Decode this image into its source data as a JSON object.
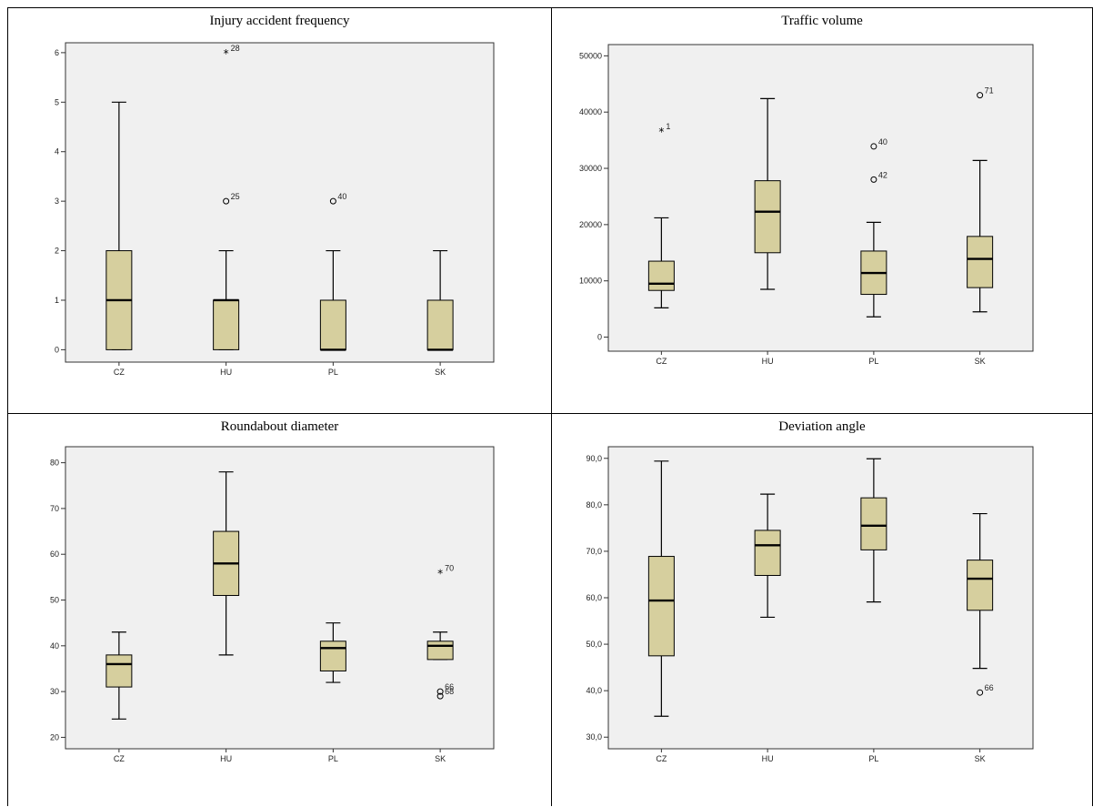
{
  "colors": {
    "box_fill": "#d6cf9e",
    "plot_bg": "#f0f0f0"
  },
  "chart_data": [
    {
      "type": "boxplot",
      "title": "Injury accident frequency",
      "categories": [
        "CZ",
        "HU",
        "PL",
        "SK"
      ],
      "ylim": [
        -0.25,
        6.2
      ],
      "yticks": [
        0,
        1,
        2,
        3,
        4,
        5,
        6
      ],
      "ytick_labels": [
        "0",
        "1",
        "2",
        "3",
        "4",
        "5",
        "6"
      ],
      "boxes": [
        {
          "min": 0,
          "q1": 0,
          "median": 1,
          "q3": 2,
          "max": 5
        },
        {
          "min": 0,
          "q1": 0,
          "median": 1,
          "q3": 1,
          "max": 2
        },
        {
          "min": 0,
          "q1": 0,
          "median": 0,
          "q3": 1,
          "max": 2
        },
        {
          "min": 0,
          "q1": 0,
          "median": 0,
          "q3": 1,
          "max": 2
        }
      ],
      "outliers": [
        {
          "cat": 1,
          "value": 6,
          "label": "28",
          "kind": "extreme"
        },
        {
          "cat": 1,
          "value": 3,
          "label": "25",
          "kind": "outlier"
        },
        {
          "cat": 2,
          "value": 3,
          "label": "40",
          "kind": "outlier"
        }
      ],
      "grid": false
    },
    {
      "type": "boxplot",
      "title": "Traffic volume",
      "categories": [
        "CZ",
        "HU",
        "PL",
        "SK"
      ],
      "ylim": [
        -2500,
        52000
      ],
      "yticks": [
        0,
        10000,
        20000,
        30000,
        40000,
        50000
      ],
      "ytick_labels": [
        "0",
        "10000",
        "20000",
        "30000",
        "40000",
        "50000"
      ],
      "boxes": [
        {
          "min": 5200,
          "q1": 8300,
          "median": 9500,
          "q3": 13500,
          "max": 21200
        },
        {
          "min": 8500,
          "q1": 15000,
          "median": 22300,
          "q3": 27800,
          "max": 42400
        },
        {
          "min": 3600,
          "q1": 7600,
          "median": 11400,
          "q3": 15300,
          "max": 20400
        },
        {
          "min": 4500,
          "q1": 8800,
          "median": 13900,
          "q3": 17900,
          "max": 31400
        }
      ],
      "outliers": [
        {
          "cat": 0,
          "value": 36600,
          "label": "1",
          "kind": "extreme"
        },
        {
          "cat": 2,
          "value": 33900,
          "label": "40",
          "kind": "outlier"
        },
        {
          "cat": 2,
          "value": 28000,
          "label": "42",
          "kind": "outlier"
        },
        {
          "cat": 3,
          "value": 43000,
          "label": "71",
          "kind": "outlier"
        }
      ],
      "grid": false
    },
    {
      "type": "boxplot",
      "title": "Roundabout diameter",
      "categories": [
        "CZ",
        "HU",
        "PL",
        "SK"
      ],
      "ylim": [
        17.5,
        83.5
      ],
      "yticks": [
        20,
        30,
        40,
        50,
        60,
        70,
        80
      ],
      "ytick_labels": [
        "20",
        "30",
        "40",
        "50",
        "60",
        "70",
        "80"
      ],
      "boxes": [
        {
          "min": 24,
          "q1": 31,
          "median": 36,
          "q3": 38,
          "max": 43
        },
        {
          "min": 38,
          "q1": 51,
          "median": 58,
          "q3": 65,
          "max": 78
        },
        {
          "min": 32,
          "q1": 34.5,
          "median": 39.5,
          "q3": 41,
          "max": 45
        },
        {
          "min": 37,
          "q1": 37,
          "median": 40,
          "q3": 41,
          "max": 43
        }
      ],
      "outliers": [
        {
          "cat": 3,
          "value": 56,
          "label": "70",
          "kind": "extreme"
        },
        {
          "cat": 3,
          "value": 30,
          "label": "66",
          "kind": "outlier"
        },
        {
          "cat": 3,
          "value": 29,
          "label": "68",
          "kind": "outlier"
        }
      ],
      "grid": false
    },
    {
      "type": "boxplot",
      "title": "Deviation angle",
      "categories": [
        "CZ",
        "HU",
        "PL",
        "SK"
      ],
      "ylim": [
        27.5,
        92.5
      ],
      "yticks": [
        30,
        40,
        50,
        60,
        70,
        80,
        90
      ],
      "ytick_labels": [
        "30,0",
        "40,0",
        "50,0",
        "60,0",
        "70,0",
        "80,0",
        "90,0"
      ],
      "boxes": [
        {
          "min": 34.5,
          "q1": 47.5,
          "median": 59.4,
          "q3": 68.9,
          "max": 89.4
        },
        {
          "min": 55.8,
          "q1": 64.8,
          "median": 71.3,
          "q3": 74.5,
          "max": 82.3
        },
        {
          "min": 59.1,
          "q1": 70.3,
          "median": 75.5,
          "q3": 81.5,
          "max": 89.9
        },
        {
          "min": 44.8,
          "q1": 57.3,
          "median": 64.1,
          "q3": 68.1,
          "max": 78.1
        }
      ],
      "outliers": [
        {
          "cat": 3,
          "value": 39.6,
          "label": "66",
          "kind": "outlier"
        }
      ],
      "grid": false
    }
  ]
}
